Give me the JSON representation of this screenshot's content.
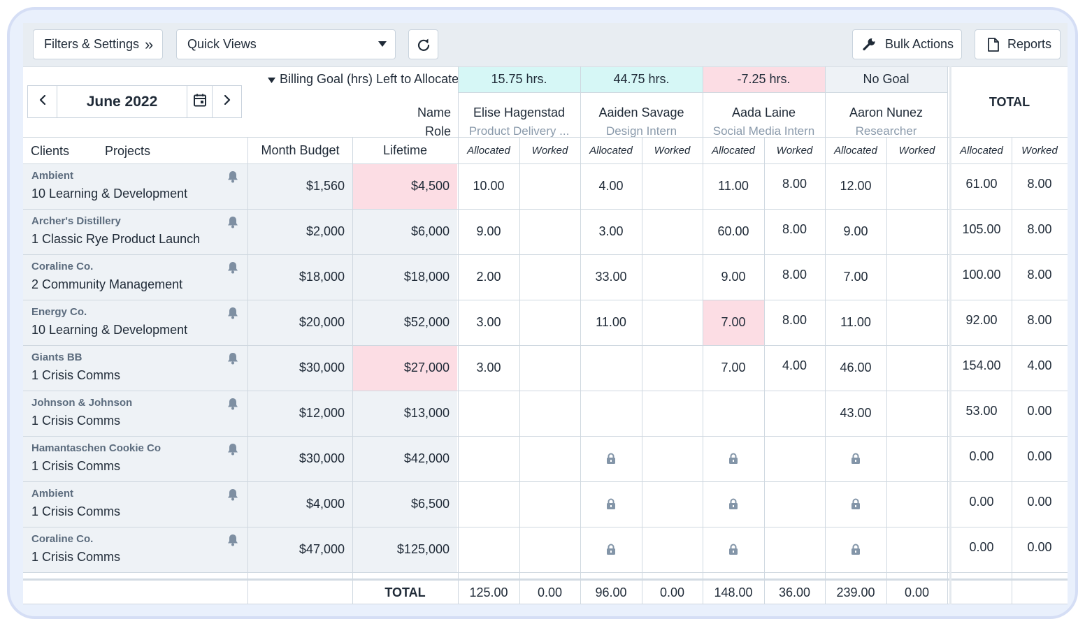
{
  "toolbar": {
    "filters_label": "Filters & Settings",
    "filters_chevron": "»",
    "quick_views_label": "Quick Views",
    "bulk_actions_label": "Bulk Actions",
    "reports_label": "Reports"
  },
  "date_nav": {
    "month": "June 2022"
  },
  "header": {
    "billing_goal_label": "Billing Goal (hrs) Left to Allocate",
    "name_label": "Name",
    "role_label": "Role",
    "total_label": "TOTAL",
    "clients_label": "Clients",
    "projects_label": "Projects",
    "month_budget_label": "Month Budget",
    "lifetime_label": "Lifetime",
    "allocated_label": "Allocated",
    "worked_label": "Worked"
  },
  "people": [
    {
      "goal": "15.75 hrs.",
      "goal_status": "positive",
      "name": "Elise Hagenstad",
      "role": "Product Delivery ..."
    },
    {
      "goal": "44.75 hrs.",
      "goal_status": "positive",
      "name": "Aaiden Savage",
      "role": "Design Intern"
    },
    {
      "goal": "-7.25 hrs.",
      "goal_status": "negative",
      "name": "Aada Laine",
      "role": "Social Media Intern"
    },
    {
      "goal": "No Goal",
      "goal_status": "none",
      "name": "Aaron Nunez",
      "role": "Researcher"
    }
  ],
  "rows": [
    {
      "client": "Ambient",
      "project": "10 Learning & Development",
      "month_budget": "$1,560",
      "lifetime": "$4,500",
      "lifetime_over": true,
      "cells": [
        [
          "10.00",
          ""
        ],
        [
          "4.00",
          ""
        ],
        [
          "11.00",
          "8.00"
        ],
        [
          "12.00",
          ""
        ]
      ],
      "locks": [
        false,
        false,
        false,
        false
      ],
      "total_alloc": "61.00",
      "total_worked": "8.00"
    },
    {
      "client": "Archer's Distillery",
      "project": "1 Classic Rye Product Launch",
      "month_budget": "$2,000",
      "lifetime": "$6,000",
      "lifetime_over": false,
      "cells": [
        [
          "9.00",
          ""
        ],
        [
          "3.00",
          ""
        ],
        [
          "60.00",
          "8.00"
        ],
        [
          "9.00",
          ""
        ]
      ],
      "locks": [
        false,
        false,
        false,
        false
      ],
      "total_alloc": "105.00",
      "total_worked": "8.00"
    },
    {
      "client": "Coraline Co.",
      "project": "2 Community Management",
      "month_budget": "$18,000",
      "lifetime": "$18,000",
      "lifetime_over": false,
      "cells": [
        [
          "2.00",
          ""
        ],
        [
          "33.00",
          ""
        ],
        [
          "9.00",
          "8.00"
        ],
        [
          "7.00",
          ""
        ]
      ],
      "locks": [
        false,
        false,
        false,
        false
      ],
      "total_alloc": "100.00",
      "total_worked": "8.00"
    },
    {
      "client": "Energy Co.",
      "project": "10 Learning & Development",
      "month_budget": "$20,000",
      "lifetime": "$52,000",
      "lifetime_over": false,
      "cells": [
        [
          "3.00",
          ""
        ],
        [
          "11.00",
          ""
        ],
        [
          "7.00",
          "8.00"
        ],
        [
          "11.00",
          ""
        ]
      ],
      "locks": [
        false,
        false,
        false,
        false
      ],
      "total_alloc": "92.00",
      "total_worked": "8.00",
      "highlight_cell": 2
    },
    {
      "client": "Giants BB",
      "project": "1 Crisis Comms",
      "month_budget": "$30,000",
      "lifetime": "$27,000",
      "lifetime_over": true,
      "cells": [
        [
          "3.00",
          ""
        ],
        [
          "",
          ""
        ],
        [
          "7.00",
          "4.00"
        ],
        [
          "46.00",
          ""
        ]
      ],
      "locks": [
        false,
        false,
        false,
        false
      ],
      "total_alloc": "154.00",
      "total_worked": "4.00"
    },
    {
      "client": "Johnson & Johnson",
      "project": "1 Crisis Comms",
      "month_budget": "$12,000",
      "lifetime": "$13,000",
      "lifetime_over": false,
      "cells": [
        [
          "",
          ""
        ],
        [
          "",
          ""
        ],
        [
          "",
          ""
        ],
        [
          "43.00",
          ""
        ]
      ],
      "locks": [
        false,
        false,
        false,
        false
      ],
      "total_alloc": "53.00",
      "total_worked": "0.00"
    },
    {
      "client": "Hamantaschen Cookie Co",
      "project": "1 Crisis Comms",
      "month_budget": "$30,000",
      "lifetime": "$42,000",
      "lifetime_over": false,
      "cells": [
        [
          "",
          ""
        ],
        [
          "",
          ""
        ],
        [
          "",
          ""
        ],
        [
          "",
          ""
        ]
      ],
      "locks": [
        false,
        true,
        true,
        true
      ],
      "total_alloc": "0.00",
      "total_worked": "0.00"
    },
    {
      "client": "Ambient",
      "project": "1 Crisis Comms",
      "month_budget": "$4,000",
      "lifetime": "$6,500",
      "lifetime_over": false,
      "cells": [
        [
          "",
          ""
        ],
        [
          "",
          ""
        ],
        [
          "",
          ""
        ],
        [
          "",
          ""
        ]
      ],
      "locks": [
        false,
        true,
        true,
        true
      ],
      "total_alloc": "0.00",
      "total_worked": "0.00"
    },
    {
      "client": "Coraline Co.",
      "project": "1 Crisis Comms",
      "month_budget": "$47,000",
      "lifetime": "$125,000",
      "lifetime_over": false,
      "cells": [
        [
          "",
          ""
        ],
        [
          "",
          ""
        ],
        [
          "",
          ""
        ],
        [
          "",
          ""
        ]
      ],
      "locks": [
        false,
        true,
        true,
        true
      ],
      "total_alloc": "0.00",
      "total_worked": "0.00"
    }
  ],
  "footer": {
    "total_label": "TOTAL",
    "values": [
      "125.00",
      "0.00",
      "96.00",
      "0.00",
      "148.00",
      "36.00",
      "239.00",
      "0.00"
    ]
  },
  "colors": {
    "over_budget": "#fcdde4",
    "goal_positive": "#d6f7f6",
    "goal_none": "#eef2f6",
    "accent": "#1f2a37"
  },
  "icons": {
    "prev": "chevron-left-icon",
    "next": "chevron-right-icon",
    "calendar": "calendar-icon",
    "refresh": "refresh-icon",
    "wrench": "wrench-icon",
    "document": "document-icon",
    "bell": "bell-icon",
    "lock": "lock-icon",
    "dropdown": "caret-down-icon"
  }
}
